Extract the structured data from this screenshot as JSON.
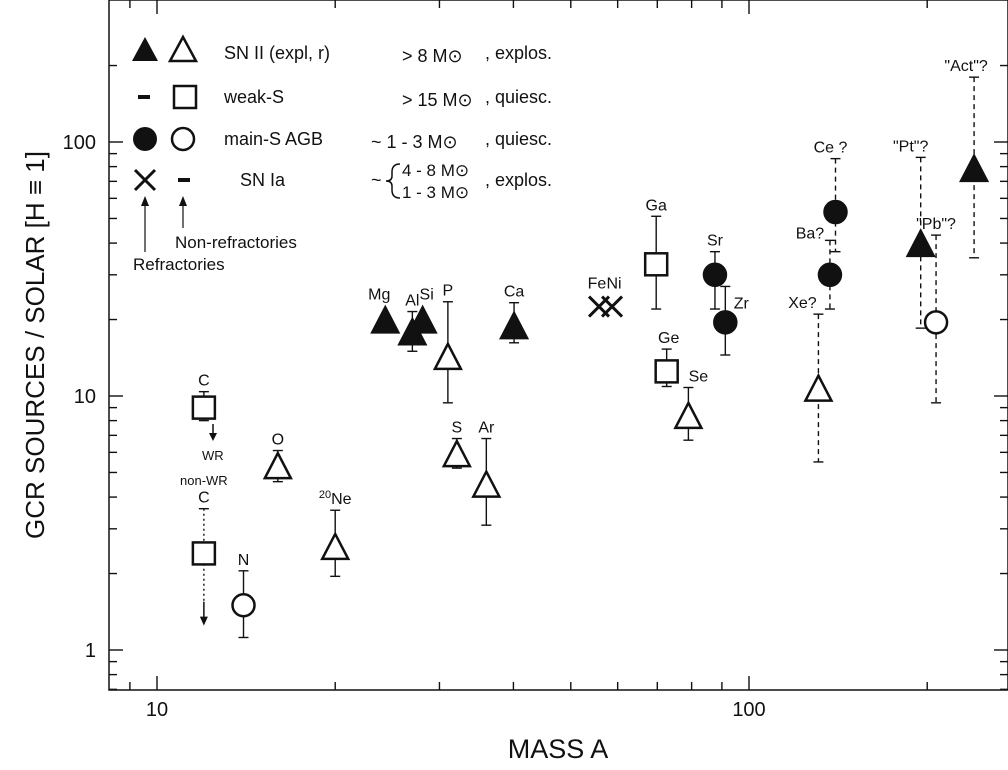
{
  "chart_data": {
    "type": "scatter",
    "xlabel": "MASS   A",
    "ylabel": "GCR SOURCES / SOLAR   [H ≡ 1]",
    "xscale": "log",
    "yscale": "log",
    "xlim": [
      8.3,
      270
    ],
    "ylim": [
      0.7,
      270
    ],
    "x_tick_labels": [
      {
        "value": 10,
        "label": "10"
      },
      {
        "value": 100,
        "label": "100"
      }
    ],
    "y_tick_labels": [
      {
        "value": 1,
        "label": "1"
      },
      {
        "value": 10,
        "label": "10"
      },
      {
        "value": 100,
        "label": "100"
      }
    ],
    "legend": {
      "placement": "top-left",
      "rows": [
        {
          "symbols": [
            "triangle-filled",
            "triangle-open"
          ],
          "label": "SN II (expl, r)",
          "mass": "> 8 M⊙",
          "mode": ", explos."
        },
        {
          "symbols": [
            "dash",
            "square-open"
          ],
          "label": "weak-S",
          "mass": "> 15 M⊙",
          "mode": ", quiesc."
        },
        {
          "symbols": [
            "circle-filled",
            "circle-open"
          ],
          "label": "main-S  AGB",
          "mass": "~  1 - 3 M⊙",
          "mode": ", quiesc."
        },
        {
          "symbols": [
            "cross",
            "dash"
          ],
          "label": "SN Ia",
          "mass": "~",
          "mass_lines": [
            "4 - 8 M⊙",
            "1 - 3 M⊙"
          ],
          "mode": ", explos."
        }
      ],
      "notes": {
        "refractories": "Refractories",
        "non_refractories": "Non-refractories"
      }
    },
    "points": [
      {
        "label": "C",
        "x": 12,
        "y": 9.0,
        "marker": "square",
        "fill": "open",
        "err_lo": 8.0,
        "err_hi": 10.4,
        "err_style": "solid"
      },
      {
        "label": "C",
        "x": 12,
        "y": 2.4,
        "marker": "square",
        "fill": "open",
        "err_lo": 1.55,
        "err_hi": 3.6,
        "err_style": "dotted",
        "upper_limit": true
      },
      {
        "label": "N",
        "x": 14,
        "y": 1.5,
        "marker": "circle",
        "fill": "open",
        "err_lo": 1.12,
        "err_hi": 2.05,
        "err_style": "solid"
      },
      {
        "label": "O",
        "x": 16,
        "y": 5.2,
        "marker": "triangle",
        "fill": "open",
        "err_lo": 4.6,
        "err_hi": 6.1,
        "err_style": "solid"
      },
      {
        "label": "20Ne",
        "x": 20,
        "y": 2.5,
        "marker": "triangle",
        "fill": "open",
        "err_lo": 1.95,
        "err_hi": 3.55,
        "err_style": "solid"
      },
      {
        "label": "Mg",
        "x": 24.3,
        "y": 19.5,
        "marker": "triangle",
        "fill": "filled",
        "err_lo": null,
        "err_hi": null,
        "err_style": "solid"
      },
      {
        "label": "Al",
        "x": 27,
        "y": 17.5,
        "marker": "triangle",
        "fill": "filled",
        "err_lo": 15,
        "err_hi": 21.5,
        "err_style": "solid"
      },
      {
        "label": "Si",
        "x": 28.1,
        "y": 19.5,
        "marker": "triangle",
        "fill": "filled",
        "err_lo": null,
        "err_hi": null,
        "err_style": "solid"
      },
      {
        "label": "P",
        "x": 31,
        "y": 14,
        "marker": "triangle",
        "fill": "open",
        "err_lo": 9.4,
        "err_hi": 23.5,
        "err_style": "solid"
      },
      {
        "label": "S",
        "x": 32.1,
        "y": 5.8,
        "marker": "triangle",
        "fill": "open",
        "err_lo": 5.2,
        "err_hi": 6.8,
        "err_style": "solid"
      },
      {
        "label": "Ar",
        "x": 36,
        "y": 4.4,
        "marker": "triangle",
        "fill": "open",
        "err_lo": 3.1,
        "err_hi": 6.8,
        "err_style": "solid"
      },
      {
        "label": "Ca",
        "x": 40.1,
        "y": 18.5,
        "marker": "triangle",
        "fill": "filled",
        "err_lo": 16.2,
        "err_hi": 23.3,
        "err_style": "solid"
      },
      {
        "label": "Fe",
        "x": 55.8,
        "y": 22.5,
        "marker": "cross",
        "fill": "none",
        "err_lo": null,
        "err_hi": null,
        "err_style": "solid"
      },
      {
        "label": "Ni",
        "x": 58.7,
        "y": 22.5,
        "marker": "cross",
        "fill": "none",
        "err_lo": null,
        "err_hi": null,
        "err_style": "solid"
      },
      {
        "label": "Ga",
        "x": 69.7,
        "y": 33,
        "marker": "square",
        "fill": "open",
        "err_lo": 22,
        "err_hi": 51,
        "err_style": "solid"
      },
      {
        "label": "Ge",
        "x": 72.6,
        "y": 12.5,
        "marker": "square",
        "fill": "open",
        "err_lo": 10.9,
        "err_hi": 15.3,
        "err_style": "solid"
      },
      {
        "label": "Se",
        "x": 79,
        "y": 8.2,
        "marker": "triangle",
        "fill": "open",
        "err_lo": 6.7,
        "err_hi": 10.8,
        "err_style": "solid"
      },
      {
        "label": "Sr",
        "x": 87.6,
        "y": 30,
        "marker": "circle",
        "fill": "filled",
        "err_lo": 22,
        "err_hi": 37,
        "err_style": "solid"
      },
      {
        "label": "Zr",
        "x": 91.2,
        "y": 19.5,
        "marker": "circle",
        "fill": "filled",
        "err_lo": 14.5,
        "err_hi": 27,
        "err_style": "solid"
      },
      {
        "label": "Xe?",
        "x": 131,
        "y": 10.5,
        "marker": "triangle",
        "fill": "open",
        "err_lo": 5.5,
        "err_hi": 21,
        "err_style": "dashed"
      },
      {
        "label": "Ba?",
        "x": 137,
        "y": 30,
        "marker": "circle",
        "fill": "filled",
        "err_lo": 22,
        "err_hi": 41,
        "err_style": "dashed"
      },
      {
        "label": "Ce ?",
        "x": 140,
        "y": 53,
        "marker": "circle",
        "fill": "filled",
        "err_lo": 37,
        "err_hi": 86,
        "err_style": "dashed"
      },
      {
        "label": "\"Pt\"?",
        "x": 195,
        "y": 39,
        "marker": "triangle",
        "fill": "filled",
        "err_lo": 18.5,
        "err_hi": 87,
        "err_style": "dashed"
      },
      {
        "label": "\"Pb\"?",
        "x": 207,
        "y": 19.5,
        "marker": "circle",
        "fill": "open",
        "err_lo": 9.4,
        "err_hi": 43,
        "err_style": "dashed"
      },
      {
        "label": "\"Act\"?",
        "x": 240,
        "y": 77,
        "marker": "triangle",
        "fill": "filled",
        "err_lo": 35,
        "err_hi": 180,
        "err_style": "dashed"
      }
    ]
  }
}
